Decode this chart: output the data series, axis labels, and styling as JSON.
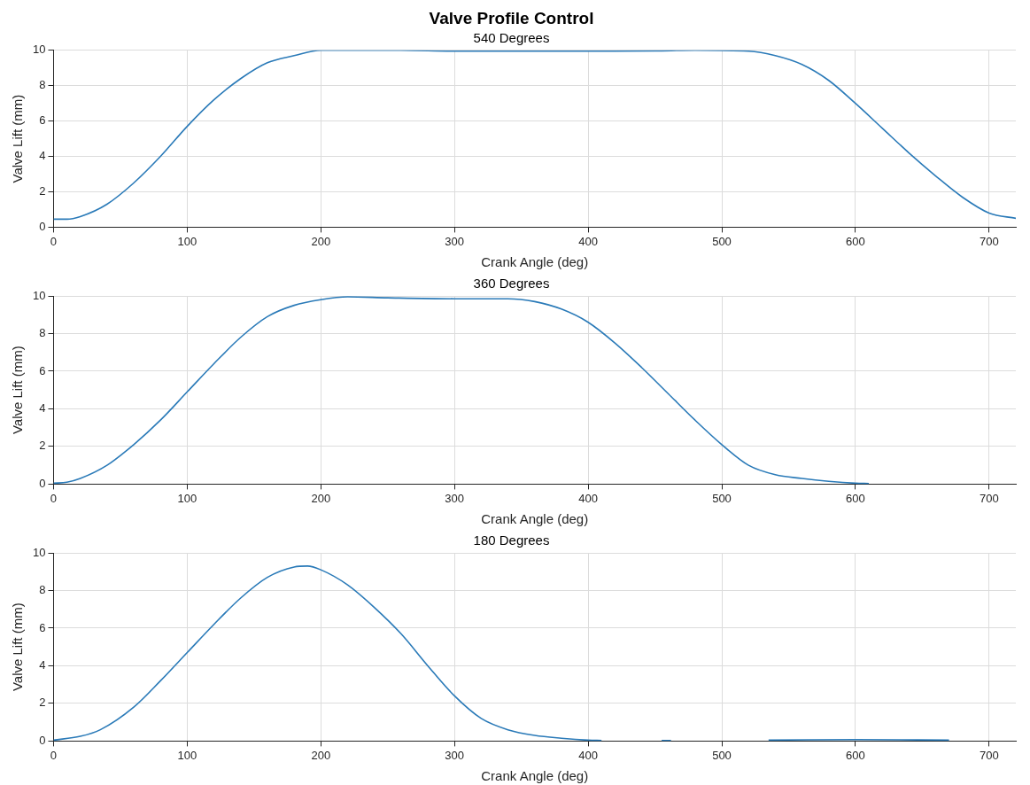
{
  "chart_data": [
    {
      "type": "line",
      "title": "Valve Profile Control",
      "subtitle": "540 Degrees",
      "xlabel": "Crank Angle (deg)",
      "ylabel": "Valve Lift (mm)",
      "xlim": [
        0,
        720
      ],
      "xticks": [
        0,
        100,
        200,
        300,
        400,
        500,
        600,
        700
      ],
      "ylim": [
        0,
        10
      ],
      "yticks": [
        0,
        2,
        4,
        6,
        8,
        10
      ],
      "grid": true,
      "legend": false,
      "marker": "none",
      "line_style": "solid",
      "series": [
        {
          "color": "#2a7ab8",
          "x": [
            0,
            10,
            20,
            40,
            60,
            80,
            100,
            120,
            140,
            160,
            180,
            200,
            220,
            260,
            300,
            400,
            450,
            480,
            520,
            540,
            560,
            580,
            600,
            620,
            640,
            660,
            680,
            700,
            720
          ],
          "values": [
            0.45,
            0.45,
            0.6,
            1.3,
            2.5,
            4.0,
            5.7,
            7.2,
            8.4,
            9.3,
            9.7,
            10.0,
            10.0,
            10.0,
            9.95,
            9.95,
            9.97,
            10.0,
            9.95,
            9.7,
            9.2,
            8.3,
            7.0,
            5.6,
            4.2,
            2.9,
            1.7,
            0.8,
            0.5
          ]
        }
      ]
    },
    {
      "type": "line",
      "title": "360 Degrees",
      "xlabel": "Crank Angle (deg)",
      "ylabel": "Valve Lift (mm)",
      "xlim": [
        0,
        720
      ],
      "xticks": [
        0,
        100,
        200,
        300,
        400,
        500,
        600,
        700
      ],
      "ylim": [
        0,
        10
      ],
      "yticks": [
        0,
        2,
        4,
        6,
        8,
        10
      ],
      "grid": true,
      "legend": false,
      "marker": "none",
      "line_style": "solid",
      "series": [
        {
          "color": "#2a7ab8",
          "x": [
            0,
            10,
            20,
            40,
            60,
            80,
            100,
            120,
            140,
            160,
            180,
            200,
            220,
            250,
            300,
            340,
            360,
            380,
            400,
            420,
            440,
            460,
            480,
            500,
            520,
            540,
            560,
            580,
            600,
            610
          ],
          "values": [
            0.05,
            0.1,
            0.3,
            1.0,
            2.1,
            3.4,
            4.9,
            6.4,
            7.8,
            8.9,
            9.5,
            9.8,
            9.95,
            9.9,
            9.85,
            9.85,
            9.7,
            9.3,
            8.6,
            7.5,
            6.2,
            4.8,
            3.4,
            2.1,
            1.0,
            0.5,
            0.3,
            0.15,
            0.05,
            0.03
          ]
        }
      ]
    },
    {
      "type": "line",
      "title": "180 Degrees",
      "xlabel": "Crank Angle (deg)",
      "ylabel": "Valve Lift (mm)",
      "xlim": [
        0,
        720
      ],
      "xticks": [
        0,
        100,
        200,
        300,
        400,
        500,
        600,
        700
      ],
      "ylim": [
        0,
        10
      ],
      "yticks": [
        0,
        2,
        4,
        6,
        8,
        10
      ],
      "grid": true,
      "legend": false,
      "marker": "none",
      "line_style": "solid",
      "series": [
        {
          "color": "#2a7ab8",
          "x": [
            0,
            20,
            35,
            60,
            80,
            100,
            120,
            140,
            160,
            180,
            190,
            200,
            220,
            240,
            260,
            280,
            300,
            320,
            340,
            360,
            380,
            400,
            410,
            430,
            455,
            462,
            500,
            535,
            600,
            670
          ],
          "values": [
            0.05,
            0.25,
            0.6,
            1.8,
            3.2,
            4.7,
            6.2,
            7.6,
            8.7,
            9.25,
            9.3,
            9.1,
            8.3,
            7.1,
            5.7,
            4.0,
            2.4,
            1.2,
            0.6,
            0.3,
            0.15,
            0.05,
            0.03,
            null,
            0.03,
            0.03,
            null,
            0.05,
            0.08,
            0.05
          ]
        }
      ]
    }
  ]
}
